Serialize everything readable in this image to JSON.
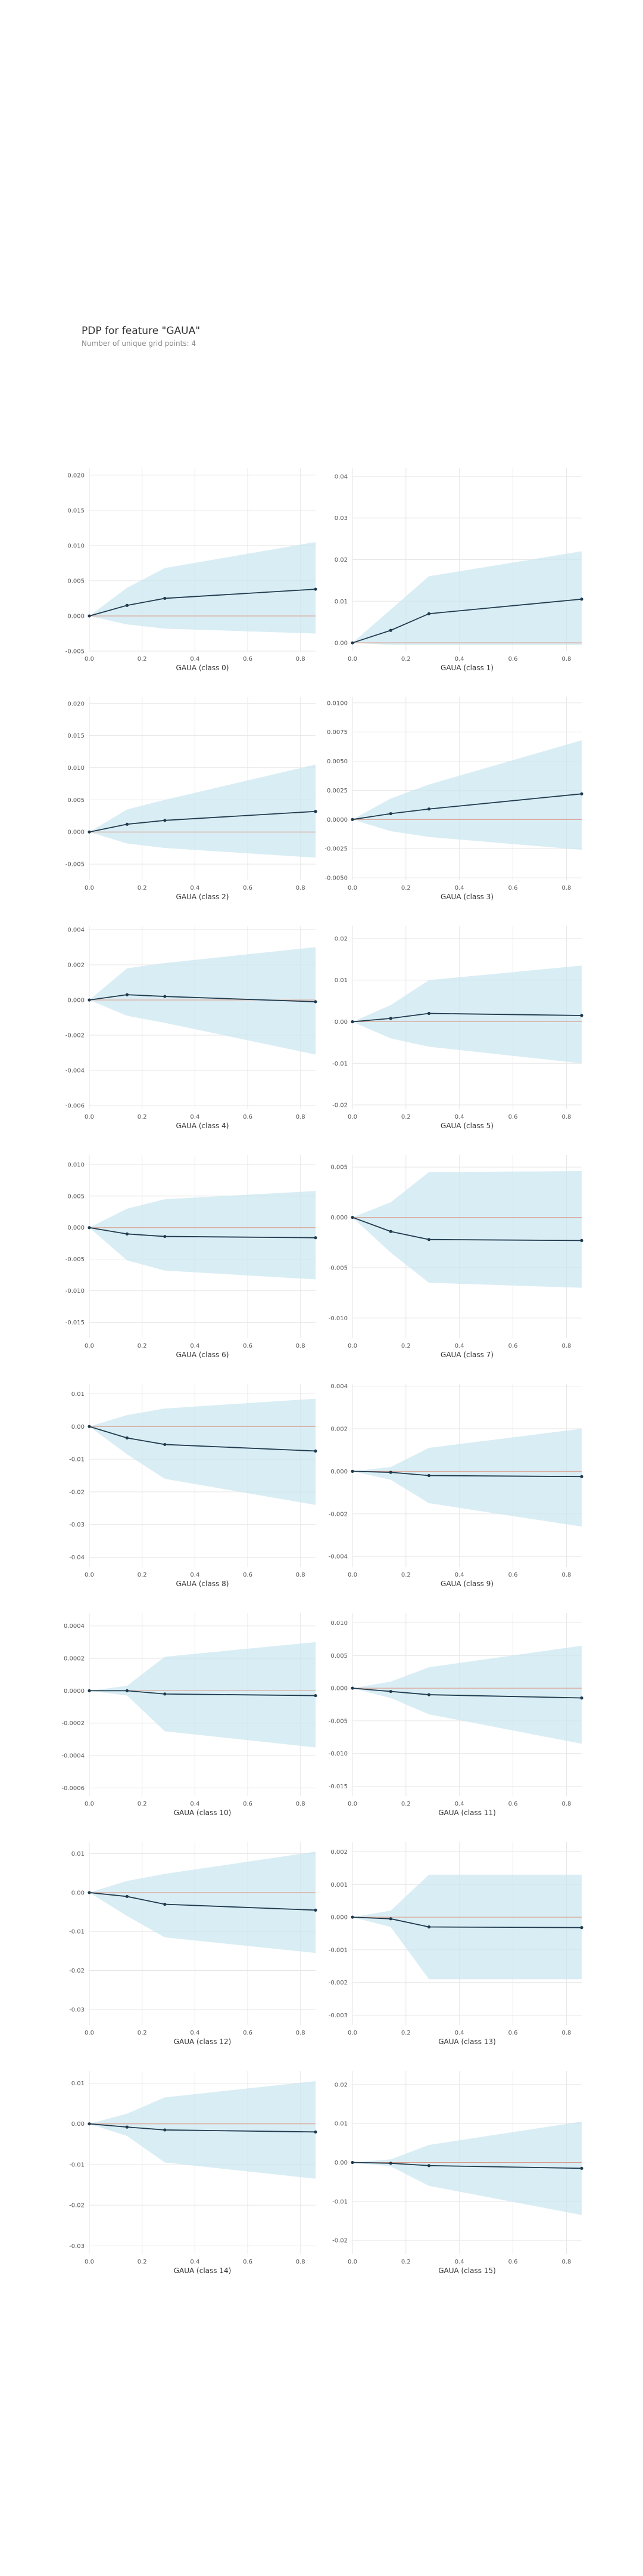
{
  "header": {
    "title": "PDP for feature \"GAUA\"",
    "subtitle": "Number of unique grid points: 4"
  },
  "colors": {
    "band": "#c9e6f0",
    "line": "#1f3b4d",
    "reference": "#e07a5f",
    "grid": "#e6e6e6"
  },
  "chart_data": [
    {
      "type": "line",
      "xlabel": "GAUA (class 0)",
      "x": [
        0,
        0.143,
        0.286,
        0.857
      ],
      "y": [
        0,
        0.0015,
        0.0025,
        0.0038
      ],
      "lower": [
        0,
        -0.0012,
        -0.0018,
        -0.0025
      ],
      "upper": [
        0,
        0.004,
        0.0068,
        0.0105
      ],
      "xlim": [
        0,
        0.857
      ],
      "ylim": [
        -0.005,
        0.021
      ],
      "yticks": [
        -0.005,
        0,
        0.005,
        0.01,
        0.015,
        0.02
      ],
      "ytick_labels": [
        "-0.005",
        "0.000",
        "0.005",
        "0.010",
        "0.015",
        "0.020"
      ],
      "xticks": [
        0,
        0.2,
        0.4,
        0.6,
        0.8
      ],
      "xtick_labels": [
        "0.0",
        "0.2",
        "0.4",
        "0.6",
        "0.8"
      ]
    },
    {
      "type": "line",
      "xlabel": "GAUA (class 1)",
      "x": [
        0,
        0.143,
        0.286,
        0.857
      ],
      "y": [
        0,
        0.003,
        0.007,
        0.0105
      ],
      "lower": [
        0,
        -0.0005,
        -0.0005,
        -0.0005
      ],
      "upper": [
        0,
        0.008,
        0.016,
        0.022
      ],
      "xlim": [
        0,
        0.857
      ],
      "ylim": [
        -0.002,
        0.042
      ],
      "yticks": [
        0,
        0.01,
        0.02,
        0.03,
        0.04
      ],
      "ytick_labels": [
        "0.00",
        "0.01",
        "0.02",
        "0.03",
        "0.04"
      ],
      "xticks": [
        0,
        0.2,
        0.4,
        0.6,
        0.8
      ],
      "xtick_labels": [
        "0.0",
        "0.2",
        "0.4",
        "0.6",
        "0.8"
      ]
    },
    {
      "type": "line",
      "xlabel": "GAUA (class 2)",
      "x": [
        0,
        0.143,
        0.286,
        0.857
      ],
      "y": [
        0,
        0.0012,
        0.0018,
        0.0032
      ],
      "lower": [
        0,
        -0.0018,
        -0.0025,
        -0.004
      ],
      "upper": [
        0,
        0.0035,
        0.005,
        0.0105
      ],
      "xlim": [
        0,
        0.857
      ],
      "ylim": [
        -0.0075,
        0.021
      ],
      "yticks": [
        -0.005,
        0,
        0.005,
        0.01,
        0.015,
        0.02
      ],
      "ytick_labels": [
        "-0.005",
        "0.000",
        "0.005",
        "0.010",
        "0.015",
        "0.020"
      ],
      "xticks": [
        0,
        0.2,
        0.4,
        0.6,
        0.8
      ],
      "xtick_labels": [
        "0.0",
        "0.2",
        "0.4",
        "0.6",
        "0.8"
      ]
    },
    {
      "type": "line",
      "xlabel": "GAUA (class 3)",
      "x": [
        0,
        0.143,
        0.286,
        0.857
      ],
      "y": [
        0,
        0.0005,
        0.0009,
        0.0022
      ],
      "lower": [
        0,
        -0.001,
        -0.0015,
        -0.0026
      ],
      "upper": [
        0,
        0.0018,
        0.003,
        0.0068
      ],
      "xlim": [
        0,
        0.857
      ],
      "ylim": [
        -0.0052,
        0.0105
      ],
      "yticks": [
        -0.005,
        -0.0025,
        0,
        0.0025,
        0.005,
        0.0075,
        0.01
      ],
      "ytick_labels": [
        "-0.0050",
        "-0.0025",
        "0.0000",
        "0.0025",
        "0.0050",
        "0.0075",
        "0.0100"
      ],
      "xticks": [
        0,
        0.2,
        0.4,
        0.6,
        0.8
      ],
      "xtick_labels": [
        "0.0",
        "0.2",
        "0.4",
        "0.6",
        "0.8"
      ]
    },
    {
      "type": "line",
      "xlabel": "GAUA (class 4)",
      "x": [
        0,
        0.143,
        0.286,
        0.857
      ],
      "y": [
        0,
        0.0003,
        0.0002,
        -0.0001
      ],
      "lower": [
        0,
        -0.0009,
        -0.0013,
        -0.0031
      ],
      "upper": [
        0,
        0.0018,
        0.0021,
        0.003
      ],
      "xlim": [
        0,
        0.857
      ],
      "ylim": [
        -0.0062,
        0.0042
      ],
      "yticks": [
        -0.006,
        -0.004,
        -0.002,
        0,
        0.002,
        0.004
      ],
      "ytick_labels": [
        "-0.006",
        "-0.004",
        "-0.002",
        "0.000",
        "0.002",
        "0.004"
      ],
      "xticks": [
        0,
        0.2,
        0.4,
        0.6,
        0.8
      ],
      "xtick_labels": [
        "0.0",
        "0.2",
        "0.4",
        "0.6",
        "0.8"
      ]
    },
    {
      "type": "line",
      "xlabel": "GAUA (class 5)",
      "x": [
        0,
        0.143,
        0.286,
        0.857
      ],
      "y": [
        0,
        0.0008,
        0.002,
        0.0015
      ],
      "lower": [
        0,
        -0.004,
        -0.006,
        -0.01
      ],
      "upper": [
        0,
        0.004,
        0.01,
        0.0135
      ],
      "xlim": [
        0,
        0.857
      ],
      "ylim": [
        -0.021,
        0.023
      ],
      "yticks": [
        -0.02,
        -0.01,
        0,
        0.01,
        0.02
      ],
      "ytick_labels": [
        "-0.02",
        "-0.01",
        "0.00",
        "0.01",
        "0.02"
      ],
      "xticks": [
        0,
        0.2,
        0.4,
        0.6,
        0.8
      ],
      "xtick_labels": [
        "0.0",
        "0.2",
        "0.4",
        "0.6",
        "0.8"
      ]
    },
    {
      "type": "line",
      "xlabel": "GAUA (class 6)",
      "x": [
        0,
        0.143,
        0.286,
        0.857
      ],
      "y": [
        0,
        -0.001,
        -0.0014,
        -0.0016
      ],
      "lower": [
        0,
        -0.0052,
        -0.0068,
        -0.0082
      ],
      "upper": [
        0,
        0.003,
        0.0045,
        0.0058
      ],
      "xlim": [
        0,
        0.857
      ],
      "ylim": [
        -0.0175,
        0.0115
      ],
      "yticks": [
        -0.015,
        -0.01,
        -0.005,
        0,
        0.005,
        0.01
      ],
      "ytick_labels": [
        "-0.015",
        "-0.010",
        "-0.005",
        "0.000",
        "0.005",
        "0.010"
      ],
      "xticks": [
        0,
        0.2,
        0.4,
        0.6,
        0.8
      ],
      "xtick_labels": [
        "0.0",
        "0.2",
        "0.4",
        "0.6",
        "0.8"
      ]
    },
    {
      "type": "line",
      "xlabel": "GAUA (class 7)",
      "x": [
        0,
        0.143,
        0.286,
        0.857
      ],
      "y": [
        0,
        -0.0014,
        -0.0022,
        -0.0023
      ],
      "lower": [
        0,
        -0.0035,
        -0.0065,
        -0.007
      ],
      "upper": [
        0,
        0.0015,
        0.0045,
        0.0046
      ],
      "xlim": [
        0,
        0.857
      ],
      "ylim": [
        -0.012,
        0.0062
      ],
      "yticks": [
        -0.01,
        -0.005,
        0,
        0.005
      ],
      "ytick_labels": [
        "-0.010",
        "-0.005",
        "0.000",
        "0.005"
      ],
      "xticks": [
        0,
        0.2,
        0.4,
        0.6,
        0.8
      ],
      "xtick_labels": [
        "0.0",
        "0.2",
        "0.4",
        "0.6",
        "0.8"
      ]
    },
    {
      "type": "line",
      "xlabel": "GAUA (class 8)",
      "x": [
        0,
        0.143,
        0.286,
        0.857
      ],
      "y": [
        0,
        -0.0035,
        -0.0055,
        -0.0075
      ],
      "lower": [
        0,
        -0.0085,
        -0.016,
        -0.024
      ],
      "upper": [
        0,
        0.0035,
        0.0055,
        0.0085
      ],
      "xlim": [
        0,
        0.857
      ],
      "ylim": [
        -0.043,
        0.013
      ],
      "yticks": [
        -0.04,
        -0.03,
        -0.02,
        -0.01,
        0,
        0.01
      ],
      "ytick_labels": [
        "-0.04",
        "-0.03",
        "-0.02",
        "-0.01",
        "0.00",
        "0.01"
      ],
      "xticks": [
        0,
        0.2,
        0.4,
        0.6,
        0.8
      ],
      "xtick_labels": [
        "0.0",
        "0.2",
        "0.4",
        "0.6",
        "0.8"
      ]
    },
    {
      "type": "line",
      "xlabel": "GAUA (class 9)",
      "x": [
        0,
        0.143,
        0.286,
        0.857
      ],
      "y": [
        0,
        -5e-05,
        -0.0002,
        -0.00025
      ],
      "lower": [
        0,
        -0.0004,
        -0.0015,
        -0.0026
      ],
      "upper": [
        0,
        0.0002,
        0.0011,
        0.002
      ],
      "xlim": [
        0,
        0.857
      ],
      "ylim": [
        -0.0045,
        0.0041
      ],
      "yticks": [
        -0.004,
        -0.002,
        0,
        0.002,
        0.004
      ],
      "ytick_labels": [
        "-0.004",
        "-0.002",
        "0.000",
        "0.002",
        "0.004"
      ],
      "xticks": [
        0,
        0.2,
        0.4,
        0.6,
        0.8
      ],
      "xtick_labels": [
        "0.0",
        "0.2",
        "0.4",
        "0.6",
        "0.8"
      ]
    },
    {
      "type": "line",
      "xlabel": "GAUA (class 10)",
      "x": [
        0,
        0.143,
        0.286,
        0.857
      ],
      "y": [
        0,
        0,
        -2e-05,
        -3e-05
      ],
      "lower": [
        0,
        -3e-05,
        -0.00025,
        -0.00035
      ],
      "upper": [
        0,
        3e-05,
        0.00021,
        0.0003
      ],
      "xlim": [
        0,
        0.857
      ],
      "ylim": [
        -0.00065,
        0.00048
      ],
      "yticks": [
        -0.0006,
        -0.0004,
        -0.0002,
        0,
        0.0002,
        0.0004
      ],
      "ytick_labels": [
        "-0.0006",
        "-0.0004",
        "-0.0002",
        "0.0000",
        "0.0002",
        "0.0004"
      ],
      "xticks": [
        0,
        0.2,
        0.4,
        0.6,
        0.8
      ],
      "xtick_labels": [
        "0.0",
        "0.2",
        "0.4",
        "0.6",
        "0.8"
      ]
    },
    {
      "type": "line",
      "xlabel": "GAUA (class 11)",
      "x": [
        0,
        0.143,
        0.286,
        0.857
      ],
      "y": [
        0,
        -0.0005,
        -0.001,
        -0.0015
      ],
      "lower": [
        0,
        -0.0015,
        -0.004,
        -0.0085
      ],
      "upper": [
        0,
        0.001,
        0.0032,
        0.0065
      ],
      "xlim": [
        0,
        0.857
      ],
      "ylim": [
        -0.0165,
        0.0115
      ],
      "yticks": [
        -0.015,
        -0.01,
        -0.005,
        0,
        0.005,
        0.01
      ],
      "ytick_labels": [
        "-0.015",
        "-0.010",
        "-0.005",
        "0.000",
        "0.005",
        "0.010"
      ],
      "xticks": [
        0,
        0.2,
        0.4,
        0.6,
        0.8
      ],
      "xtick_labels": [
        "0.0",
        "0.2",
        "0.4",
        "0.6",
        "0.8"
      ]
    },
    {
      "type": "line",
      "xlabel": "GAUA (class 12)",
      "x": [
        0,
        0.143,
        0.286,
        0.857
      ],
      "y": [
        0,
        -0.001,
        -0.003,
        -0.0045
      ],
      "lower": [
        0,
        -0.006,
        -0.0115,
        -0.0155
      ],
      "upper": [
        0,
        0.003,
        0.0048,
        0.0105
      ],
      "xlim": [
        0,
        0.857
      ],
      "ylim": [
        -0.034,
        0.013
      ],
      "yticks": [
        -0.03,
        -0.02,
        -0.01,
        0,
        0.01
      ],
      "ytick_labels": [
        "-0.03",
        "-0.02",
        "-0.01",
        "0.00",
        "0.01"
      ],
      "xticks": [
        0,
        0.2,
        0.4,
        0.6,
        0.8
      ],
      "xtick_labels": [
        "0.0",
        "0.2",
        "0.4",
        "0.6",
        "0.8"
      ]
    },
    {
      "type": "line",
      "xlabel": "GAUA (class 13)",
      "x": [
        0,
        0.143,
        0.286,
        0.857
      ],
      "y": [
        0,
        -5e-05,
        -0.0003,
        -0.00032
      ],
      "lower": [
        0,
        -0.0003,
        -0.0019,
        -0.0019
      ],
      "upper": [
        0,
        0.0002,
        0.0013,
        0.0013
      ],
      "xlim": [
        0,
        0.857
      ],
      "ylim": [
        -0.0033,
        0.0023
      ],
      "yticks": [
        -0.003,
        -0.002,
        -0.001,
        0,
        0.001,
        0.002
      ],
      "ytick_labels": [
        "-0.003",
        "-0.002",
        "-0.001",
        "0.000",
        "0.001",
        "0.002"
      ],
      "xticks": [
        0,
        0.2,
        0.4,
        0.6,
        0.8
      ],
      "xtick_labels": [
        "0.0",
        "0.2",
        "0.4",
        "0.6",
        "0.8"
      ]
    },
    {
      "type": "line",
      "xlabel": "GAUA (class 14)",
      "x": [
        0,
        0.143,
        0.286,
        0.857
      ],
      "y": [
        0,
        -0.0008,
        -0.0015,
        -0.002
      ],
      "lower": [
        0,
        -0.003,
        -0.0095,
        -0.0135
      ],
      "upper": [
        0,
        0.0025,
        0.0065,
        0.0105
      ],
      "xlim": [
        0,
        0.857
      ],
      "ylim": [
        -0.032,
        0.013
      ],
      "yticks": [
        -0.03,
        -0.02,
        -0.01,
        0,
        0.01
      ],
      "ytick_labels": [
        "-0.03",
        "-0.02",
        "-0.01",
        "0.00",
        "0.01"
      ],
      "xticks": [
        0,
        0.2,
        0.4,
        0.6,
        0.8
      ],
      "xtick_labels": [
        "0.0",
        "0.2",
        "0.4",
        "0.6",
        "0.8"
      ]
    },
    {
      "type": "line",
      "xlabel": "GAUA (class 15)",
      "x": [
        0,
        0.143,
        0.286,
        0.857
      ],
      "y": [
        0,
        -0.0002,
        -0.0008,
        -0.0015
      ],
      "lower": [
        0,
        -0.001,
        -0.006,
        -0.0135
      ],
      "upper": [
        0,
        0.0008,
        0.0045,
        0.0105
      ],
      "xlim": [
        0,
        0.857
      ],
      "ylim": [
        -0.0235,
        0.0235
      ],
      "yticks": [
        -0.02,
        -0.01,
        0,
        0.01,
        0.02
      ],
      "ytick_labels": [
        "-0.02",
        "-0.01",
        "0.00",
        "0.01",
        "0.02"
      ],
      "xticks": [
        0,
        0.2,
        0.4,
        0.6,
        0.8
      ],
      "xtick_labels": [
        "0.0",
        "0.2",
        "0.4",
        "0.6",
        "0.8"
      ]
    }
  ]
}
